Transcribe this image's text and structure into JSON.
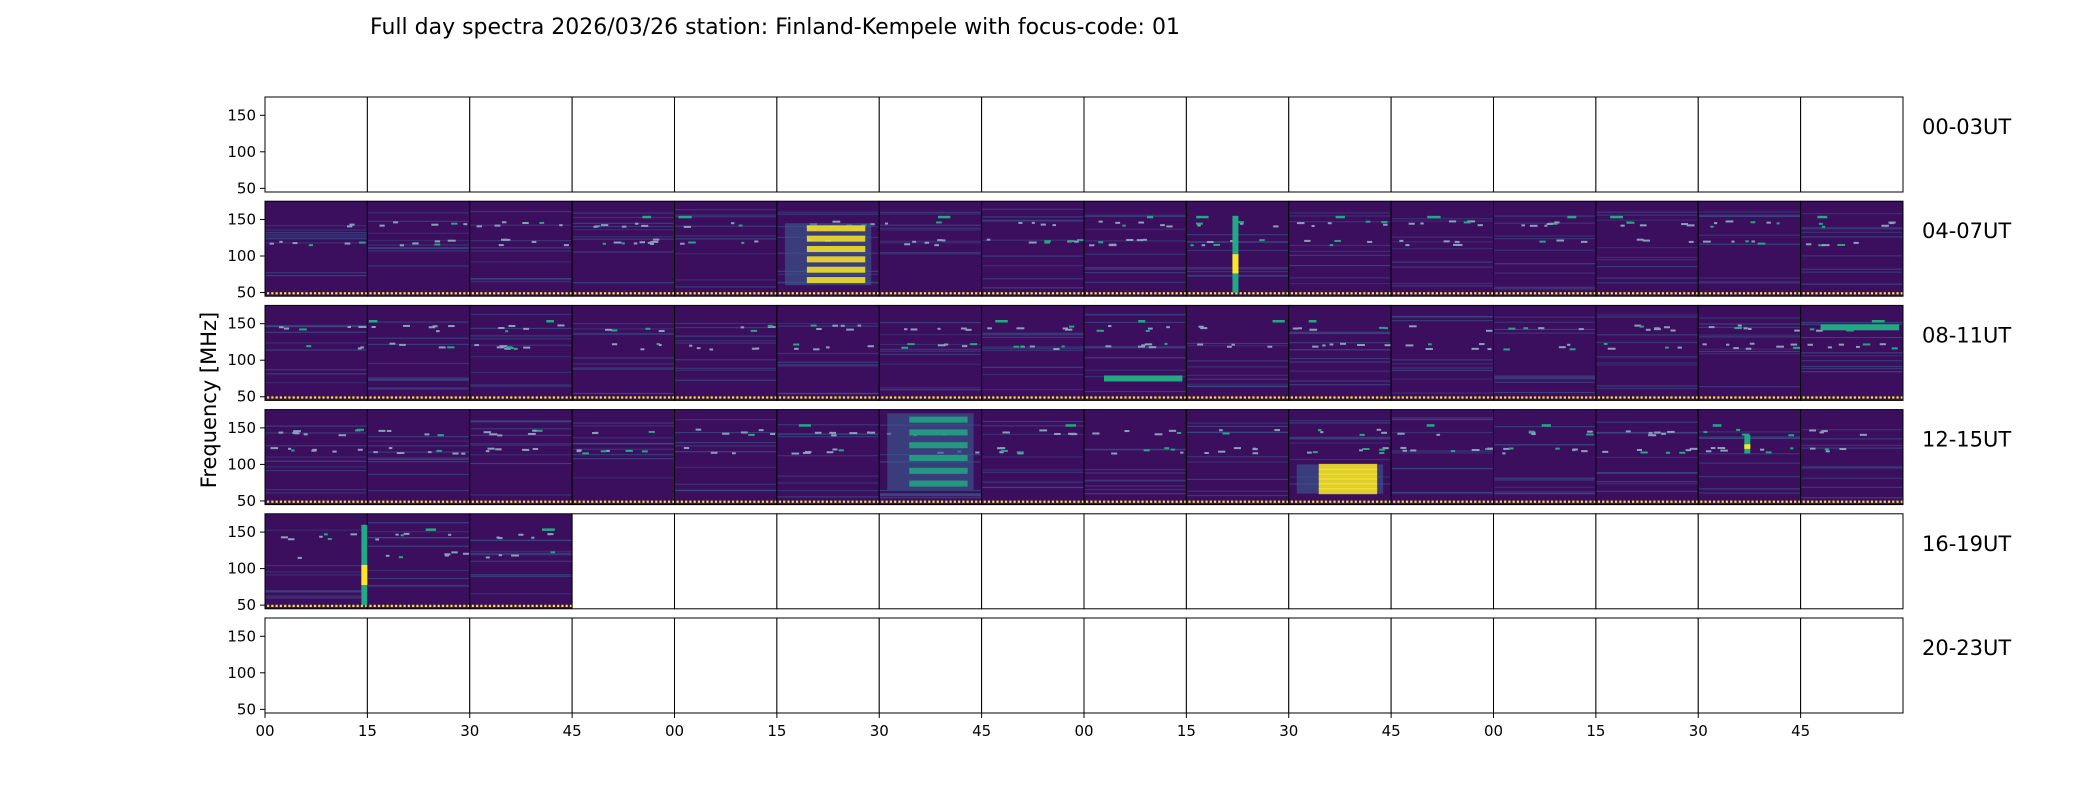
{
  "chart_data": {
    "type": "heatmap",
    "title": "Full day spectra 2026/03/26 station: Finland-Kempele with focus-code: 01",
    "ylabel": "Frequency [MHz]",
    "xlabel": "",
    "ylim": [
      45,
      175
    ],
    "yticks": [
      "150",
      "100",
      "50"
    ],
    "xticks": [
      "00",
      "15",
      "30",
      "45",
      "00",
      "15",
      "30",
      "45",
      "00",
      "15",
      "30",
      "45",
      "00",
      "15",
      "30",
      "45"
    ],
    "colors": {
      "background": "#3b0f5e",
      "mid": "#3b5c8f",
      "accent": "#22a884",
      "bright": "#fde725",
      "empty": "#ffffff"
    },
    "rows": [
      {
        "label": "00-03UT",
        "filled": 0
      },
      {
        "label": "04-07UT",
        "filled": 16
      },
      {
        "label": "08-11UT",
        "filled": 16
      },
      {
        "label": "12-15UT",
        "filled": 16
      },
      {
        "label": "16-19UT",
        "filled": 3
      },
      {
        "label": "20-23UT",
        "filled": 0
      }
    ],
    "events": [
      {
        "row": 1,
        "panel": 5,
        "type": "band",
        "freq": [
          60,
          145
        ],
        "strength": "strong"
      },
      {
        "row": 1,
        "panel": 9,
        "type": "burst",
        "freq": [
          50,
          155
        ],
        "strength": "strong"
      },
      {
        "row": 2,
        "panel": 8,
        "type": "line",
        "freq": [
          75,
          75
        ],
        "strength": "medium"
      },
      {
        "row": 2,
        "panel": 15,
        "type": "line",
        "freq": [
          145,
          145
        ],
        "strength": "medium"
      },
      {
        "row": 3,
        "panel": 6,
        "type": "band",
        "freq": [
          65,
          170
        ],
        "strength": "medium"
      },
      {
        "row": 3,
        "panel": 10,
        "type": "band",
        "freq": [
          60,
          100
        ],
        "strength": "strong"
      },
      {
        "row": 3,
        "panel": 14,
        "type": "burst",
        "freq": [
          115,
          140
        ],
        "strength": "strong"
      },
      {
        "row": 4,
        "panel": 0,
        "type": "burst",
        "freq": [
          50,
          160
        ],
        "strength": "strong"
      }
    ]
  }
}
